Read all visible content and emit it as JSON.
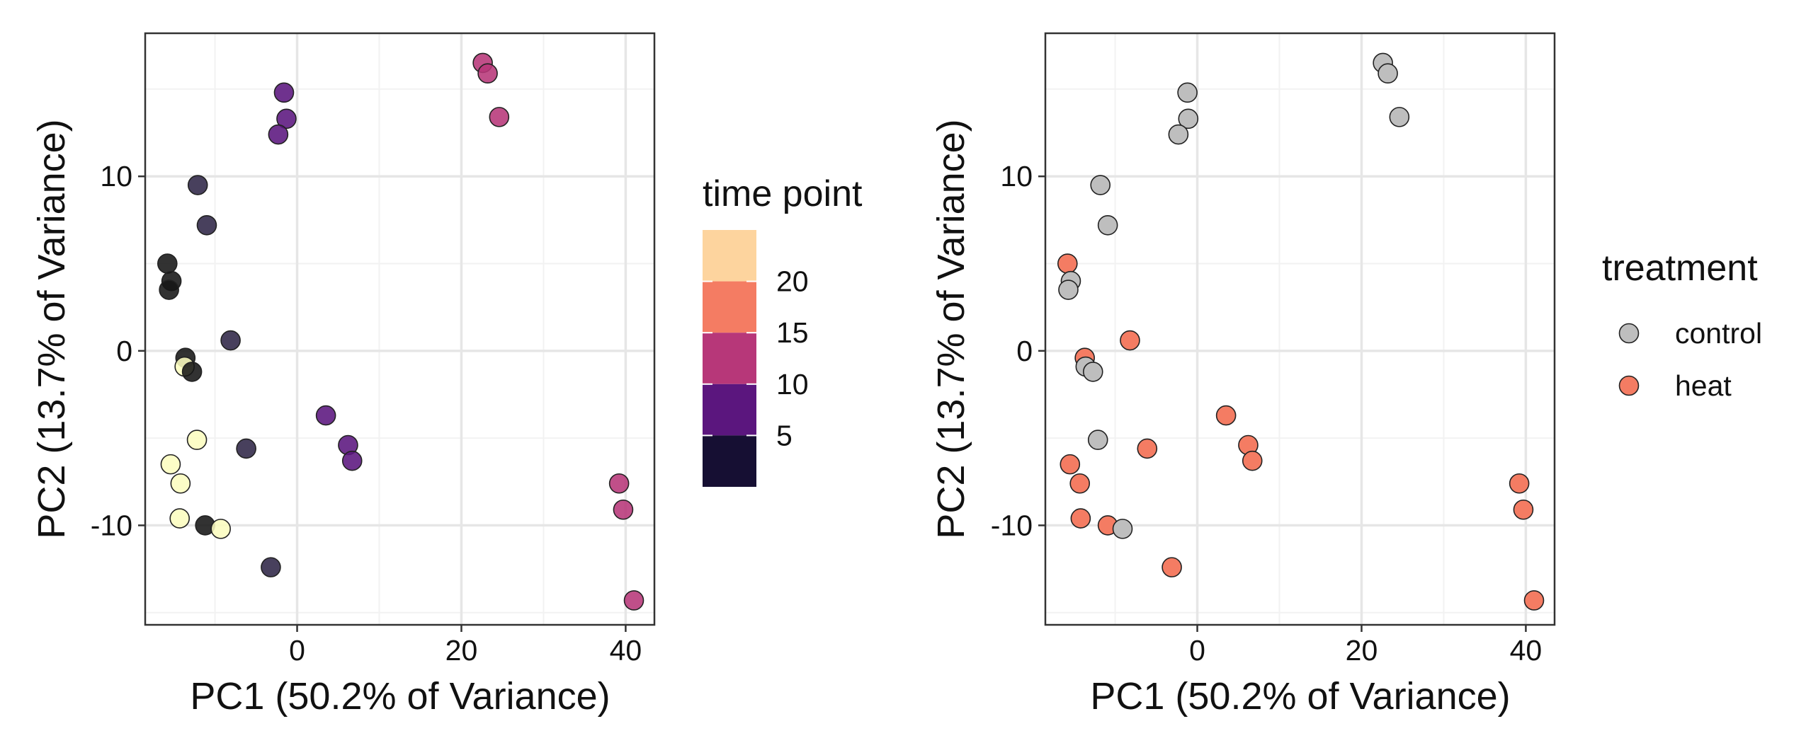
{
  "chart_data": [
    {
      "type": "scatter",
      "xlabel": "PC1 (50.2% of Variance)",
      "ylabel": "PC2 (13.7% of Variance)",
      "xlim": [
        -18.5,
        43.5
      ],
      "ylim": [
        -15.7,
        18.2
      ],
      "xticks": [
        0,
        20,
        40
      ],
      "yticks": [
        -10,
        0,
        10
      ],
      "grid": true,
      "color_by": "time point",
      "legend": {
        "title": "time point",
        "type": "binned-colorbar",
        "labels": [
          "20",
          "15",
          "10",
          "5"
        ],
        "bin_colors": [
          "#fdd49e",
          "#f47c63",
          "#b73779",
          "#5b167e",
          "#160f33"
        ],
        "placement": "right"
      },
      "points": [
        {
          "x": 22.6,
          "y": 16.5,
          "tp": 10
        },
        {
          "x": 23.2,
          "y": 15.9,
          "tp": 10
        },
        {
          "x": 24.6,
          "y": 13.4,
          "tp": 10
        },
        {
          "x": -1.6,
          "y": 14.8,
          "tp": 5
        },
        {
          "x": -1.3,
          "y": 13.3,
          "tp": 5
        },
        {
          "x": -2.3,
          "y": 12.4,
          "tp": 5
        },
        {
          "x": -12.1,
          "y": 9.5,
          "tp": 3
        },
        {
          "x": -11.0,
          "y": 7.2,
          "tp": 3
        },
        {
          "x": -15.8,
          "y": 5.0,
          "tp": 1
        },
        {
          "x": -15.3,
          "y": 4.0,
          "tp": 1
        },
        {
          "x": -15.6,
          "y": 3.5,
          "tp": 1
        },
        {
          "x": -8.1,
          "y": 0.6,
          "tp": 3
        },
        {
          "x": -13.6,
          "y": -0.4,
          "tp": 1
        },
        {
          "x": -13.7,
          "y": -0.9,
          "tp": 24
        },
        {
          "x": -12.8,
          "y": -1.2,
          "tp": 1
        },
        {
          "x": 3.5,
          "y": -3.7,
          "tp": 5
        },
        {
          "x": 6.2,
          "y": -5.4,
          "tp": 5
        },
        {
          "x": 6.7,
          "y": -6.3,
          "tp": 5
        },
        {
          "x": -12.2,
          "y": -5.1,
          "tp": 24
        },
        {
          "x": -6.2,
          "y": -5.6,
          "tp": 3
        },
        {
          "x": -15.4,
          "y": -6.5,
          "tp": 24
        },
        {
          "x": -14.2,
          "y": -7.6,
          "tp": 24
        },
        {
          "x": -14.3,
          "y": -9.6,
          "tp": 24
        },
        {
          "x": -11.2,
          "y": -10.0,
          "tp": 1
        },
        {
          "x": -9.3,
          "y": -10.2,
          "tp": 24
        },
        {
          "x": -3.2,
          "y": -12.4,
          "tp": 3
        },
        {
          "x": 39.2,
          "y": -7.6,
          "tp": 10
        },
        {
          "x": 39.7,
          "y": -9.1,
          "tp": 10
        },
        {
          "x": 41.0,
          "y": -14.3,
          "tp": 10
        }
      ]
    },
    {
      "type": "scatter",
      "xlabel": "PC1 (50.2% of Variance)",
      "ylabel": "PC2 (13.7% of Variance)",
      "xlim": [
        -18.5,
        43.5
      ],
      "ylim": [
        -15.7,
        18.2
      ],
      "xticks": [
        0,
        20,
        40
      ],
      "yticks": [
        -10,
        0,
        10
      ],
      "grid": true,
      "color_by": "treatment",
      "legend": {
        "title": "treatment",
        "type": "categorical",
        "entries": [
          {
            "label": "control",
            "color": "#bebebe"
          },
          {
            "label": "heat",
            "color": "#f47c63"
          }
        ],
        "placement": "right"
      },
      "points": [
        {
          "x": 22.6,
          "y": 16.5,
          "group": "control"
        },
        {
          "x": 23.2,
          "y": 15.9,
          "group": "control"
        },
        {
          "x": 24.6,
          "y": 13.4,
          "group": "control"
        },
        {
          "x": -1.2,
          "y": 14.8,
          "group": "control"
        },
        {
          "x": -1.1,
          "y": 13.3,
          "group": "control"
        },
        {
          "x": -2.3,
          "y": 12.4,
          "group": "control"
        },
        {
          "x": -11.8,
          "y": 9.5,
          "group": "control"
        },
        {
          "x": -10.9,
          "y": 7.2,
          "group": "control"
        },
        {
          "x": -15.8,
          "y": 5.0,
          "group": "heat"
        },
        {
          "x": -15.4,
          "y": 4.0,
          "group": "control"
        },
        {
          "x": -15.7,
          "y": 3.5,
          "group": "control"
        },
        {
          "x": -8.2,
          "y": 0.6,
          "group": "heat"
        },
        {
          "x": -13.7,
          "y": -0.4,
          "group": "heat"
        },
        {
          "x": -13.6,
          "y": -0.9,
          "group": "control"
        },
        {
          "x": -12.7,
          "y": -1.2,
          "group": "control"
        },
        {
          "x": 3.5,
          "y": -3.7,
          "group": "heat"
        },
        {
          "x": 6.2,
          "y": -5.4,
          "group": "heat"
        },
        {
          "x": 6.7,
          "y": -6.3,
          "group": "heat"
        },
        {
          "x": -12.1,
          "y": -5.1,
          "group": "control"
        },
        {
          "x": -6.1,
          "y": -5.6,
          "group": "heat"
        },
        {
          "x": -15.5,
          "y": -6.5,
          "group": "heat"
        },
        {
          "x": -14.3,
          "y": -7.6,
          "group": "heat"
        },
        {
          "x": -14.2,
          "y": -9.6,
          "group": "heat"
        },
        {
          "x": -10.9,
          "y": -10.0,
          "group": "heat"
        },
        {
          "x": -9.1,
          "y": -10.2,
          "group": "control"
        },
        {
          "x": -3.1,
          "y": -12.4,
          "group": "heat"
        },
        {
          "x": 39.2,
          "y": -7.6,
          "group": "heat"
        },
        {
          "x": 39.7,
          "y": -9.1,
          "group": "heat"
        },
        {
          "x": 41.0,
          "y": -14.3,
          "group": "heat"
        }
      ]
    }
  ]
}
